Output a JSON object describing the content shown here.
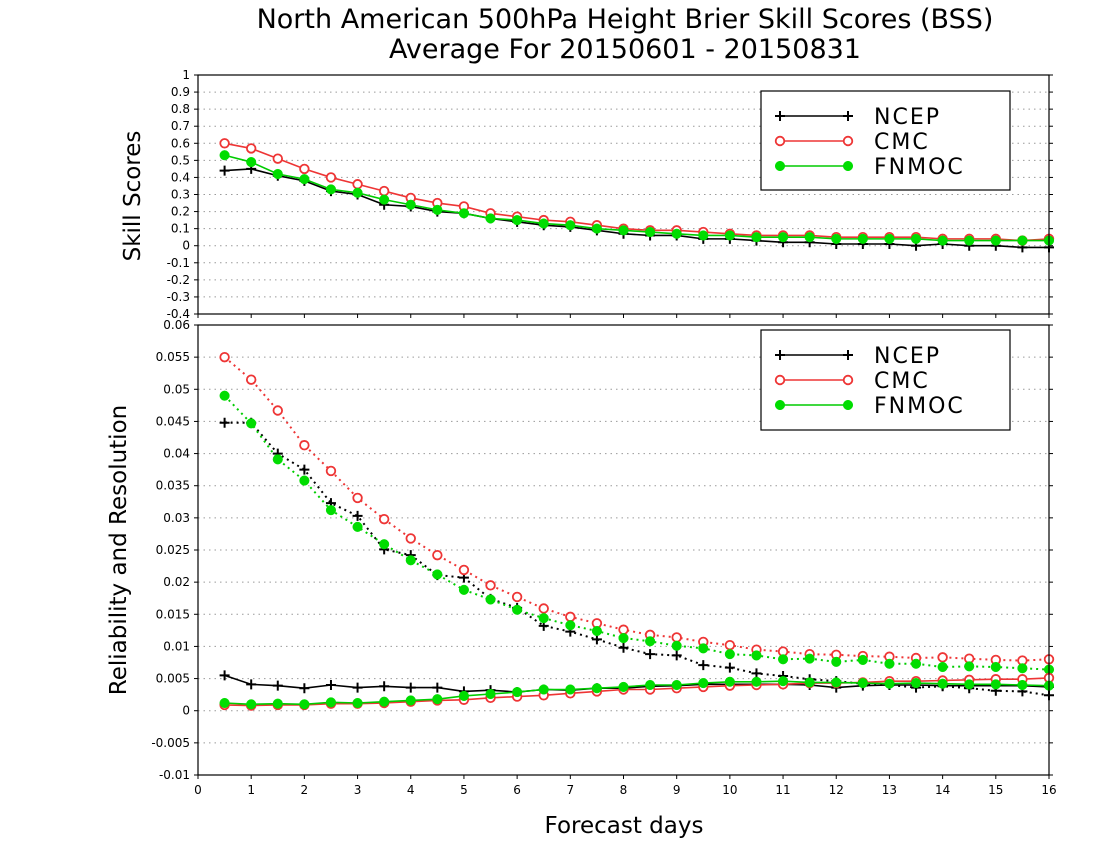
{
  "title": "North American 500hPa Height Brier Skill Scores (BSS)",
  "subtitle": "Average For 20150601 - 20150831",
  "xlabel": "Forecast days",
  "x_ticks": [
    "0",
    "1",
    "2",
    "3",
    "4",
    "5",
    "6",
    "7",
    "8",
    "9",
    "10",
    "11",
    "12",
    "13",
    "14",
    "15",
    "16"
  ],
  "colors": {
    "NCEP": "#000000",
    "CMC": "#ee3535",
    "FNMOC": "#00cc00",
    "FNMOC_marker": "#00dd00",
    "grid": "#9a9a9a"
  },
  "chart_data": [
    {
      "type": "line",
      "panel": "top",
      "ylabel": "Skill Scores",
      "xlim": [
        0,
        16
      ],
      "ylim": [
        -0.4,
        1
      ],
      "y_ticks": [
        "-0.4",
        "-0.3",
        "-0.2",
        "-0.1",
        "0",
        "0.1",
        "0.2",
        "0.3",
        "0.4",
        "0.5",
        "0.6",
        "0.7",
        "0.8",
        "0.9",
        "1"
      ],
      "grid": true,
      "legend": "top-right",
      "x": [
        0.5,
        1,
        1.5,
        2,
        2.5,
        3,
        3.5,
        4,
        4.5,
        5,
        5.5,
        6,
        6.5,
        7,
        7.5,
        8,
        8.5,
        9,
        9.5,
        10,
        10.5,
        11,
        11.5,
        12,
        12.5,
        13,
        13.5,
        14,
        14.5,
        15,
        15.5,
        16
      ],
      "series": [
        {
          "name": "NCEP",
          "marker": "plus",
          "values": [
            0.44,
            0.45,
            0.41,
            0.38,
            0.32,
            0.3,
            0.24,
            0.23,
            0.2,
            0.19,
            0.16,
            0.14,
            0.12,
            0.11,
            0.09,
            0.07,
            0.06,
            0.06,
            0.04,
            0.04,
            0.03,
            0.02,
            0.02,
            0.01,
            0.01,
            0.01,
            0.0,
            0.01,
            0.0,
            0.0,
            -0.01,
            -0.01
          ]
        },
        {
          "name": "CMC",
          "marker": "open-circle",
          "values": [
            0.6,
            0.57,
            0.51,
            0.45,
            0.4,
            0.36,
            0.32,
            0.28,
            0.25,
            0.23,
            0.19,
            0.17,
            0.15,
            0.14,
            0.12,
            0.1,
            0.09,
            0.09,
            0.08,
            0.07,
            0.06,
            0.06,
            0.06,
            0.05,
            0.05,
            0.05,
            0.05,
            0.04,
            0.04,
            0.04,
            0.03,
            0.04
          ]
        },
        {
          "name": "FNMOC",
          "marker": "filled-circle",
          "values": [
            0.53,
            0.49,
            0.42,
            0.39,
            0.33,
            0.31,
            0.27,
            0.24,
            0.21,
            0.19,
            0.16,
            0.15,
            0.13,
            0.12,
            0.1,
            0.09,
            0.08,
            0.07,
            0.06,
            0.06,
            0.05,
            0.05,
            0.05,
            0.04,
            0.04,
            0.04,
            0.04,
            0.03,
            0.03,
            0.03,
            0.03,
            0.03
          ]
        }
      ]
    },
    {
      "type": "line",
      "panel": "bottom",
      "ylabel": "Reliability and Resolution",
      "xlim": [
        0,
        16
      ],
      "ylim": [
        -0.01,
        0.06
      ],
      "y_ticks": [
        "-0.01",
        "-0.005",
        "0",
        "0.005",
        "0.01",
        "0.015",
        "0.02",
        "0.025",
        "0.03",
        "0.035",
        "0.04",
        "0.045",
        "0.05",
        "0.055",
        "0.06"
      ],
      "grid": true,
      "legend": "top-right",
      "x": [
        0.5,
        1,
        1.5,
        2,
        2.5,
        3,
        3.5,
        4,
        4.5,
        5,
        5.5,
        6,
        6.5,
        7,
        7.5,
        8,
        8.5,
        9,
        9.5,
        10,
        10.5,
        11,
        11.5,
        12,
        12.5,
        13,
        13.5,
        14,
        14.5,
        15,
        15.5,
        16
      ],
      "series": [
        {
          "name": "NCEP",
          "measure": "resolution",
          "line": "dotted",
          "marker": "plus",
          "values": [
            0.0448,
            0.0448,
            0.04,
            0.0375,
            0.0323,
            0.0303,
            0.0251,
            0.0242,
            0.0211,
            0.0207,
            0.0174,
            0.016,
            0.0132,
            0.0123,
            0.0111,
            0.0098,
            0.0088,
            0.0086,
            0.0071,
            0.0067,
            0.0058,
            0.0054,
            0.0049,
            0.0046,
            0.0042,
            0.004,
            0.0036,
            0.0038,
            0.0035,
            0.0031,
            0.003,
            0.0024
          ]
        },
        {
          "name": "CMC",
          "measure": "resolution",
          "line": "dotted",
          "marker": "open-circle",
          "values": [
            0.055,
            0.0515,
            0.0467,
            0.0413,
            0.0373,
            0.0331,
            0.0298,
            0.0268,
            0.0242,
            0.0219,
            0.0195,
            0.0177,
            0.0159,
            0.0146,
            0.0136,
            0.0126,
            0.0118,
            0.0114,
            0.0107,
            0.0102,
            0.0095,
            0.0092,
            0.0088,
            0.0087,
            0.0085,
            0.0084,
            0.0082,
            0.0083,
            0.0081,
            0.0079,
            0.0078,
            0.008
          ]
        },
        {
          "name": "FNMOC",
          "measure": "resolution",
          "line": "dotted",
          "marker": "filled-circle",
          "values": [
            0.049,
            0.0447,
            0.0391,
            0.0358,
            0.0312,
            0.0286,
            0.0259,
            0.0234,
            0.0212,
            0.0188,
            0.0173,
            0.0157,
            0.0144,
            0.0133,
            0.0124,
            0.0113,
            0.0108,
            0.0101,
            0.0097,
            0.0088,
            0.0086,
            0.008,
            0.0081,
            0.0076,
            0.0079,
            0.0073,
            0.0073,
            0.0068,
            0.0069,
            0.0068,
            0.0066,
            0.0064
          ]
        },
        {
          "name": "NCEP",
          "measure": "reliability",
          "line": "solid",
          "marker": "plus",
          "values": [
            0.0055,
            0.0041,
            0.0039,
            0.0035,
            0.004,
            0.0036,
            0.0038,
            0.0036,
            0.0036,
            0.003,
            0.0032,
            0.0029,
            0.0033,
            0.0032,
            0.0035,
            0.0035,
            0.0038,
            0.0039,
            0.0041,
            0.0041,
            0.0041,
            0.0041,
            0.004,
            0.0036,
            0.0039,
            0.004,
            0.004,
            0.0039,
            0.0039,
            0.0039,
            0.0039,
            0.0037
          ]
        },
        {
          "name": "CMC",
          "measure": "reliability",
          "line": "solid",
          "marker": "open-circle",
          "values": [
            0.0009,
            0.0008,
            0.0009,
            0.0009,
            0.0011,
            0.0011,
            0.0012,
            0.0014,
            0.0016,
            0.0017,
            0.002,
            0.0022,
            0.0024,
            0.0027,
            0.003,
            0.0033,
            0.0033,
            0.0035,
            0.0037,
            0.0039,
            0.004,
            0.0041,
            0.0043,
            0.0043,
            0.0044,
            0.0046,
            0.0046,
            0.0047,
            0.0048,
            0.0049,
            0.0049,
            0.0051
          ]
        },
        {
          "name": "FNMOC",
          "measure": "reliability",
          "line": "solid",
          "marker": "filled-circle",
          "values": [
            0.0012,
            0.001,
            0.0011,
            0.001,
            0.0013,
            0.0012,
            0.0014,
            0.0016,
            0.0018,
            0.0023,
            0.0026,
            0.0029,
            0.0033,
            0.0033,
            0.0035,
            0.0037,
            0.004,
            0.004,
            0.0043,
            0.0045,
            0.0045,
            0.0046,
            0.0044,
            0.0044,
            0.0043,
            0.0042,
            0.0043,
            0.0042,
            0.0041,
            0.0041,
            0.004,
            0.0039
          ]
        }
      ]
    }
  ]
}
